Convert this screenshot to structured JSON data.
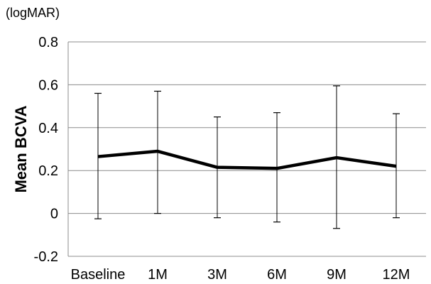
{
  "chart_data": {
    "type": "line",
    "title": "",
    "unit_label": "(logMAR)",
    "ylabel": "Mean BCVA",
    "xlabel": "",
    "categories": [
      "Baseline",
      "1M",
      "3M",
      "6M",
      "9M",
      "12M"
    ],
    "ylim": [
      -0.2,
      0.8
    ],
    "yticks": [
      -0.2,
      0,
      0.2,
      0.4,
      0.6,
      0.8
    ],
    "ytick_labels": [
      "-0.2",
      "0",
      "0.2",
      "0.4",
      "0.6",
      "0.8"
    ],
    "grid": true,
    "legend": "none",
    "series": [
      {
        "values": [
          0.265,
          0.29,
          0.215,
          0.21,
          0.26,
          0.22
        ],
        "error_upper": [
          0.56,
          0.57,
          0.45,
          0.47,
          0.595,
          0.465
        ],
        "error_lower": [
          -0.025,
          0.0,
          -0.02,
          -0.04,
          -0.07,
          -0.02
        ],
        "color": "#000000"
      }
    ]
  }
}
